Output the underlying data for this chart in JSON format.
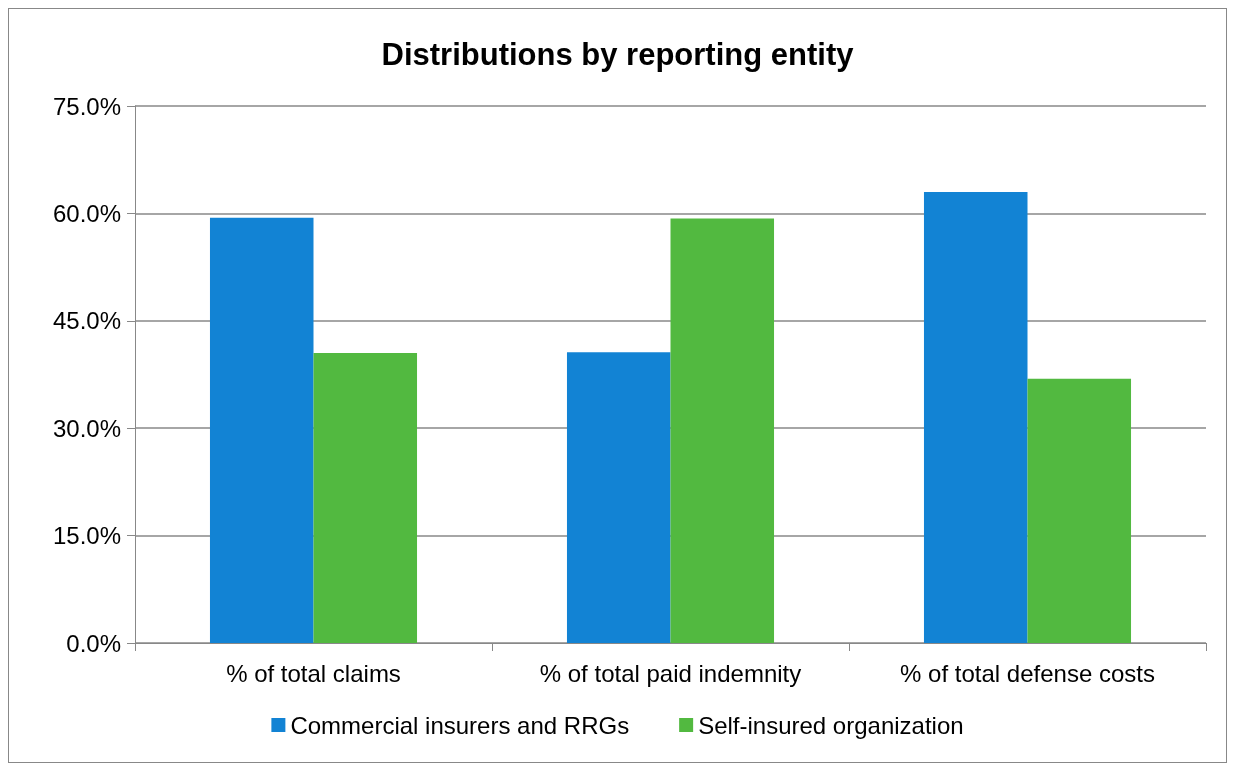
{
  "chart_data": {
    "type": "bar",
    "title": "Distributions by reporting entity",
    "categories": [
      "% of total claims",
      "% of total paid indemnity",
      "% of total defense costs"
    ],
    "series": [
      {
        "name": "Commercial insurers and RRGs",
        "color": "#1283d4",
        "values": [
          59.4,
          40.6,
          63.0
        ]
      },
      {
        "name": "Self-insured organization",
        "color": "#52b940",
        "values": [
          40.5,
          59.3,
          36.9
        ]
      }
    ],
    "ylim": [
      0,
      75
    ],
    "yticks": [
      {
        "value": 0,
        "label": "0.0%"
      },
      {
        "value": 15,
        "label": "15.0%"
      },
      {
        "value": 30,
        "label": "30.0%"
      },
      {
        "value": 45,
        "label": "45.0%"
      },
      {
        "value": 60,
        "label": "60.0%"
      },
      {
        "value": 75,
        "label": "75.0%"
      }
    ],
    "grid": "y",
    "legend": "bottom"
  }
}
